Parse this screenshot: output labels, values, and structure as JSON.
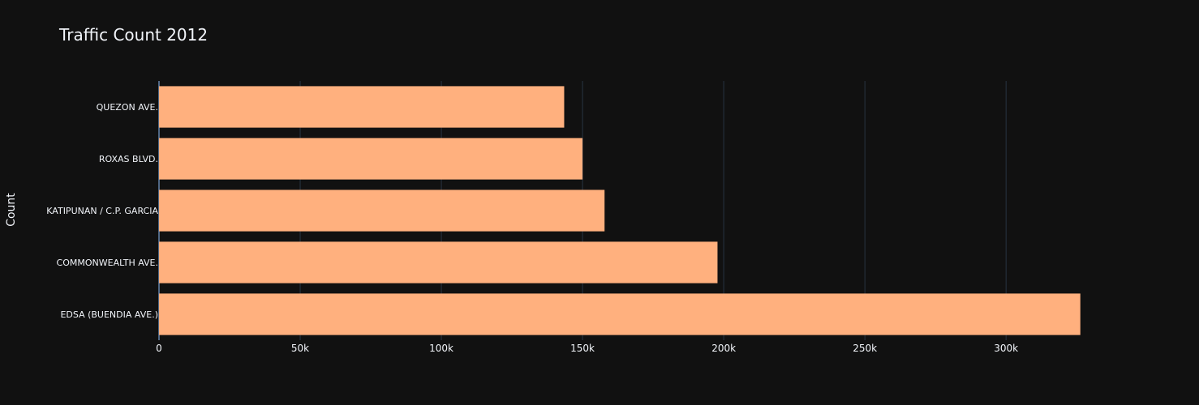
{
  "chart_data": {
    "type": "bar",
    "orientation": "horizontal",
    "title": "Traffic Count 2012",
    "xlabel": "",
    "ylabel": "Count",
    "categories": [
      "QUEZON AVE.",
      "ROXAS BLVD.",
      "KATIPUNAN / C.P. GARCIA",
      "COMMONWEALTH AVE.",
      "EDSA (BUENDIA AVE.)"
    ],
    "values": [
      143500,
      150000,
      157800,
      197800,
      326300
    ],
    "xlim": [
      0,
      335000
    ],
    "xticks": [
      0,
      50000,
      100000,
      150000,
      200000,
      250000,
      300000
    ],
    "xtick_labels": [
      "0",
      "50k",
      "100k",
      "150k",
      "200k",
      "250k",
      "300k"
    ],
    "grid": true,
    "colors": {
      "bar": "#FFB07E",
      "background": "#111111",
      "grid": "#283442",
      "text": "#f2f5fa"
    }
  }
}
